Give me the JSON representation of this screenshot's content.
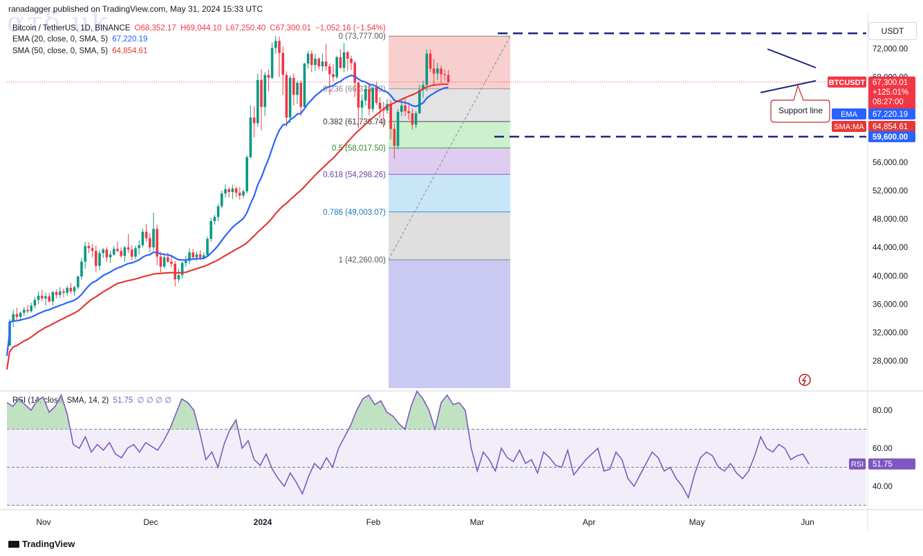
{
  "header": {
    "published_line": "ranadagger published on TradingView.com, May 31, 2024 15:33 UTC",
    "watermark": "ατδ uk",
    "symbol": "Bitcoin / TetherUS, 1D, BINANCE",
    "ohlc": {
      "o": "O68,352.17",
      "h": "H69,044.10",
      "l": "L67,250.40",
      "c": "C67,300.01",
      "chg": "−1,052.16 (−1.54%)"
    },
    "ema_label": "EMA (20, close, 0, SMA, 5)",
    "ema_value": "67,220.19",
    "sma_label": "SMA (50, close, 0, SMA, 5)",
    "sma_value": "64,854.61",
    "rsi_label": "RSI (14, close, SMA, 14, 2)",
    "rsi_value": "51.75",
    "rsi_extra": "∅ ∅ ∅ ∅",
    "currency": "USDT",
    "footer": "TradingView"
  },
  "colors": {
    "up": "#089981",
    "down": "#f23645",
    "ema": "#2962ff",
    "sma": "#e53935",
    "rsi": "#7e57c2",
    "fib0": "#f4c7c6",
    "fib236": "#e1e1e1",
    "fib382": "#d6d6d6",
    "fib5": "#c8eec8",
    "fib618": "#d9c6ec",
    "fib786": "#bfe0f7",
    "fib1": "#dcdcdc",
    "fibbelow": "#c3c3f0"
  },
  "chart_data": {
    "type": "candlestick",
    "price_axis_ticks": [
      "72,000.00",
      "68,000.00",
      "56,000.00",
      "52,000.00",
      "48,000.00",
      "44,000.00",
      "40,000.00",
      "36,000.00",
      "32,000.00",
      "28,000.00"
    ],
    "price_tick_values": [
      72000,
      68000,
      56000,
      52000,
      48000,
      44000,
      40000,
      36000,
      32000,
      28000
    ],
    "rsi_axis_ticks": [
      "80.00",
      "60.00",
      "40.00"
    ],
    "rsi_tick_values": [
      80,
      60,
      40
    ],
    "x_labels": [
      "Nov",
      "Dec",
      "2024",
      "Feb",
      "Mar",
      "Apr",
      "May",
      "Jun"
    ],
    "price_labels": [
      {
        "text": "BTCUSDT",
        "value": "67,300.01",
        "sub1": "+125.01%",
        "sub2": "08:27:00",
        "color": "#f23645",
        "price": 67300
      },
      {
        "text": "EMA",
        "value": "67,220.19",
        "color": "#2962ff",
        "price": 66950
      },
      {
        "text": "SMA:MA",
        "value": "64,854.61",
        "color": "#e53935",
        "price": 64854
      },
      {
        "text": "",
        "value": "59,600.00",
        "color": "#2962ff",
        "price": 59600
      }
    ],
    "rsi_price_label": {
      "text": "RSI",
      "value": "51.75"
    },
    "fib_levels": [
      {
        "ratio": "0",
        "text": "0 (73,777.00)",
        "price": 73777
      },
      {
        "ratio": "0.236",
        "text": "0.236 (66,338.52)",
        "price": 66338.52
      },
      {
        "ratio": "0.382",
        "text": "0.382 (61,736.74)",
        "price": 61736.74
      },
      {
        "ratio": "0.5",
        "text": "0.5 (58,017.50)",
        "price": 58017.5
      },
      {
        "ratio": "0.618",
        "text": "0.618 (54,298.26)",
        "price": 54298.26
      },
      {
        "ratio": "0.786",
        "text": "0.786 (49,003.07)",
        "price": 49003.07
      },
      {
        "ratio": "1",
        "text": "1 (42,260.00)",
        "price": 42260
      }
    ],
    "annotation": "Support line",
    "resistance": 72800,
    "support": 59600,
    "candles": [
      [
        30200,
        33900,
        30000,
        33500
      ],
      [
        33500,
        35200,
        32800,
        34600
      ],
      [
        34600,
        35500,
        33800,
        34200
      ],
      [
        34200,
        35000,
        33600,
        34800
      ],
      [
        34800,
        35600,
        34300,
        35200
      ],
      [
        35200,
        35900,
        34700,
        35000
      ],
      [
        35000,
        36200,
        34800,
        35800
      ],
      [
        35800,
        37000,
        35400,
        36600
      ],
      [
        36600,
        37800,
        36000,
        37200
      ],
      [
        37200,
        38000,
        36400,
        36800
      ],
      [
        36800,
        37600,
        35800,
        37100
      ],
      [
        37100,
        37600,
        36200,
        36400
      ],
      [
        36400,
        37900,
        35800,
        37700
      ],
      [
        37700,
        38100,
        36800,
        37300
      ],
      [
        37300,
        38400,
        36900,
        37800
      ],
      [
        37800,
        38200,
        37000,
        37600
      ],
      [
        37600,
        38600,
        37200,
        38300
      ],
      [
        38300,
        39000,
        37500,
        37800
      ],
      [
        37800,
        38600,
        37200,
        38400
      ],
      [
        38400,
        40000,
        38100,
        39900
      ],
      [
        39900,
        42500,
        39500,
        42000
      ],
      [
        42000,
        44800,
        41000,
        44200
      ],
      [
        44200,
        44700,
        43200,
        43900
      ],
      [
        43900,
        44500,
        42600,
        43500
      ],
      [
        43500,
        44300,
        40500,
        41400
      ],
      [
        41400,
        43600,
        40800,
        43200
      ],
      [
        43200,
        43900,
        42500,
        43700
      ],
      [
        43700,
        44000,
        42000,
        42600
      ],
      [
        42600,
        43500,
        41800,
        43000
      ],
      [
        43000,
        44200,
        42800,
        43800
      ],
      [
        43800,
        44800,
        43300,
        43500
      ],
      [
        43500,
        44000,
        42500,
        42800
      ],
      [
        42800,
        44200,
        42000,
        44000
      ],
      [
        44000,
        45900,
        43200,
        43700
      ],
      [
        43700,
        44300,
        42200,
        42700
      ],
      [
        42700,
        44200,
        42300,
        43900
      ],
      [
        43900,
        45000,
        43000,
        44300
      ],
      [
        44300,
        46700,
        44000,
        46200
      ],
      [
        46200,
        47300,
        44800,
        45300
      ],
      [
        45300,
        46000,
        43300,
        44000
      ],
      [
        44000,
        48900,
        43500,
        46600
      ],
      [
        46600,
        47200,
        41500,
        42700
      ],
      [
        42700,
        43400,
        40500,
        41300
      ],
      [
        41300,
        43000,
        41100,
        42600
      ],
      [
        42600,
        43300,
        41800,
        42000
      ],
      [
        42000,
        42800,
        41200,
        41700
      ],
      [
        41700,
        42100,
        38500,
        39500
      ],
      [
        39500,
        41000,
        39100,
        40100
      ],
      [
        40100,
        42000,
        39600,
        41800
      ],
      [
        41800,
        42800,
        41300,
        42100
      ],
      [
        42100,
        43900,
        41600,
        43300
      ],
      [
        43300,
        43800,
        42200,
        42600
      ],
      [
        42600,
        43400,
        42100,
        43000
      ],
      [
        43000,
        43600,
        42200,
        42600
      ],
      [
        42600,
        43300,
        42300,
        42900
      ],
      [
        42900,
        45500,
        42700,
        45200
      ],
      [
        45200,
        48200,
        44800,
        47700
      ],
      [
        47700,
        48600,
        47200,
        48300
      ],
      [
        48300,
        50100,
        47700,
        49800
      ],
      [
        49800,
        52000,
        49500,
        51600
      ],
      [
        51600,
        52900,
        51000,
        52200
      ],
      [
        52200,
        52500,
        51000,
        51800
      ],
      [
        51800,
        52800,
        50800,
        52300
      ],
      [
        52300,
        52600,
        51100,
        51700
      ],
      [
        51700,
        52500,
        50700,
        51300
      ],
      [
        51300,
        52200,
        50900,
        51900
      ],
      [
        51900,
        57000,
        51600,
        56700
      ],
      [
        56700,
        64000,
        56600,
        62300
      ],
      [
        62300,
        63900,
        59500,
        61500
      ],
      [
        61500,
        68500,
        61000,
        67600
      ],
      [
        67600,
        69100,
        60500,
        63800
      ],
      [
        63800,
        68700,
        62500,
        68300
      ],
      [
        68300,
        69100,
        66000,
        67900
      ],
      [
        67900,
        72900,
        67700,
        72100
      ],
      [
        72100,
        73800,
        71300,
        73100
      ],
      [
        73100,
        73700,
        68000,
        71400
      ],
      [
        71400,
        72300,
        65500,
        68300
      ],
      [
        68300,
        68800,
        61000,
        62300
      ],
      [
        62300,
        68200,
        61500,
        67900
      ],
      [
        67900,
        68500,
        64000,
        65500
      ],
      [
        65500,
        67500,
        64200,
        67200
      ],
      [
        67200,
        67500,
        62500,
        63800
      ],
      [
        63800,
        70000,
        63500,
        69900
      ],
      [
        69900,
        71700,
        69200,
        71300
      ],
      [
        71300,
        71800,
        68700,
        69700
      ],
      [
        69700,
        71300,
        68900,
        70600
      ],
      [
        70600,
        70800,
        69100,
        69500
      ],
      [
        69500,
        71300,
        68800,
        70200
      ],
      [
        70200,
        72700,
        68900,
        69500
      ],
      [
        69500,
        69900,
        65500,
        68400
      ],
      [
        68400,
        69800,
        67400,
        68000
      ],
      [
        68000,
        71000,
        67700,
        70800
      ],
      [
        70800,
        71900,
        69200,
        69300
      ],
      [
        69300,
        72800,
        68700,
        71500
      ],
      [
        71500,
        71700,
        68900,
        70600
      ],
      [
        70600,
        71000,
        69000,
        70000
      ],
      [
        70000,
        70300,
        65200,
        67200
      ],
      [
        67200,
        67400,
        60800,
        63700
      ],
      [
        63700,
        65500,
        62300,
        64700
      ],
      [
        64700,
        66900,
        64000,
        66300
      ],
      [
        66300,
        67200,
        62600,
        63500
      ],
      [
        63500,
        66700,
        63000,
        66500
      ],
      [
        66500,
        67400,
        64100,
        64400
      ],
      [
        64400,
        65200,
        62200,
        63500
      ],
      [
        63500,
        64500,
        60900,
        63300
      ],
      [
        63300,
        64900,
        62800,
        64200
      ],
      [
        64200,
        64700,
        59200,
        60700
      ],
      [
        60700,
        61500,
        56500,
        58300
      ],
      [
        58300,
        63500,
        57800,
        63100
      ],
      [
        63100,
        64800,
        62500,
        64000
      ],
      [
        64000,
        65200,
        62500,
        63200
      ],
      [
        63200,
        64400,
        62000,
        62900
      ],
      [
        62900,
        63500,
        60600,
        61300
      ],
      [
        61300,
        63200,
        60800,
        62900
      ],
      [
        62900,
        66900,
        62800,
        66200
      ],
      [
        66200,
        67500,
        65100,
        66900
      ],
      [
        66900,
        71900,
        66000,
        71300
      ],
      [
        71300,
        71900,
        68700,
        69200
      ],
      [
        69200,
        70600,
        66700,
        68500
      ],
      [
        68500,
        70000,
        67600,
        69200
      ],
      [
        69200,
        69600,
        67200,
        68400
      ],
      [
        68400,
        69000,
        67500,
        68300
      ],
      [
        68300,
        69000,
        67200,
        67300
      ]
    ],
    "rsi": [
      84,
      82,
      86,
      83,
      80,
      85,
      87,
      79,
      82,
      88,
      78,
      62,
      60,
      66,
      58,
      62,
      59,
      63,
      57,
      55,
      60,
      62,
      58,
      63,
      61,
      59,
      64,
      70,
      78,
      86,
      84,
      80,
      68,
      54,
      58,
      50,
      62,
      70,
      75,
      60,
      64,
      54,
      51,
      57,
      49,
      44,
      40,
      47,
      42,
      36,
      45,
      52,
      49,
      55,
      50,
      60,
      66,
      72,
      80,
      86,
      88,
      83,
      85,
      79,
      77,
      73,
      70,
      82,
      90,
      86,
      80,
      70,
      84,
      88,
      83,
      84,
      80,
      60,
      48,
      58,
      54,
      48,
      60,
      55,
      53,
      59,
      52,
      54,
      47,
      58,
      55,
      51,
      50,
      59,
      46,
      50,
      54,
      57,
      60,
      48,
      49,
      58,
      54,
      44,
      40,
      46,
      52,
      58,
      55,
      48,
      50,
      44,
      40,
      34,
      46,
      55,
      58,
      56,
      50,
      48,
      52,
      47,
      44,
      48,
      56,
      66,
      60,
      58,
      62,
      60,
      54,
      56,
      57,
      51.75
    ]
  }
}
